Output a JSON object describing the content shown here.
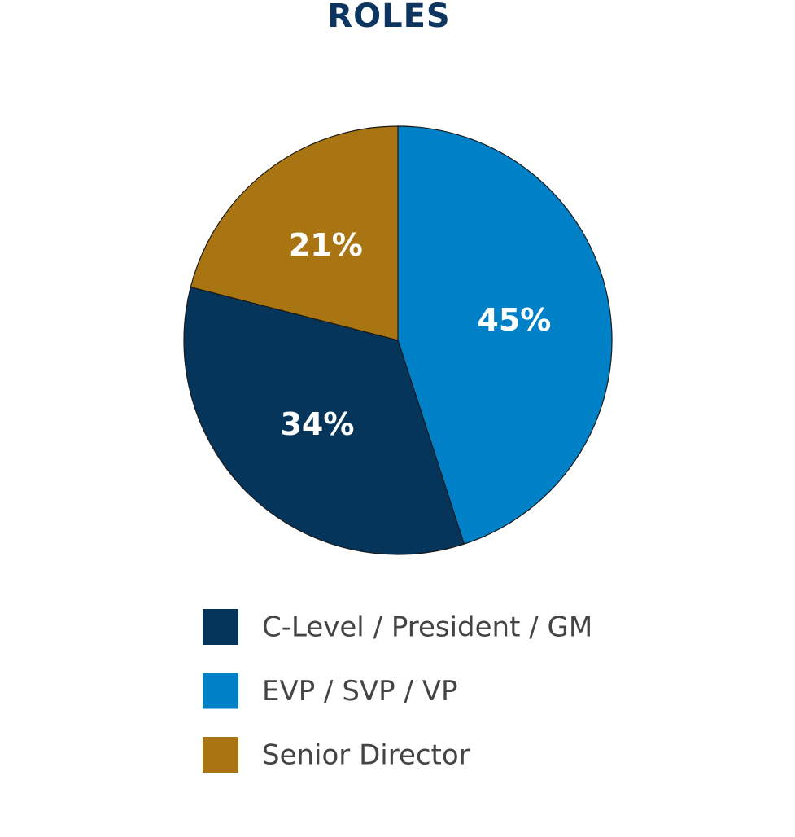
{
  "chart_data": {
    "type": "pie",
    "title": "ROLES",
    "categories": [
      "C-Level / President / GM",
      "EVP / SVP / VP",
      "Senior Director"
    ],
    "values": [
      34,
      45,
      21
    ],
    "value_labels": [
      "34%",
      "45%",
      "21%"
    ],
    "colors": [
      "#06355b",
      "#0080c6",
      "#a97512"
    ],
    "legend": "bottom"
  }
}
